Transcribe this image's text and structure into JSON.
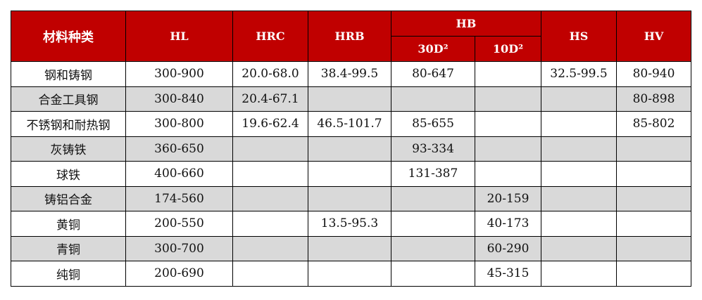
{
  "header": {
    "material": "材料种类",
    "hl": "HL",
    "hrc": "HRC",
    "hrb": "HRB",
    "hb": "HB",
    "hb_30": "30D²",
    "hb_10": "10D²",
    "hs": "HS",
    "hv": "HV"
  },
  "colors": {
    "header_bg": "#c00000",
    "stripe_bg": "#d9d9d9"
  },
  "rows": [
    [
      "钢和铸钢",
      "300-900",
      "20.0-68.0",
      "38.4-99.5",
      "80-647",
      "",
      "32.5-99.5",
      "80-940"
    ],
    [
      "合金工具钢",
      "300-840",
      "20.4-67.1",
      "",
      "",
      "",
      "",
      "80-898"
    ],
    [
      "不锈钢和耐热钢",
      "300-800",
      "19.6-62.4",
      "46.5-101.7",
      "85-655",
      "",
      "",
      "85-802"
    ],
    [
      "灰铸铁",
      "360-650",
      "",
      "",
      "93-334",
      "",
      "",
      ""
    ],
    [
      "球铁",
      "400-660",
      "",
      "",
      "131-387",
      "",
      "",
      ""
    ],
    [
      "铸铝合金",
      "174-560",
      "",
      "",
      "",
      "20-159",
      "",
      ""
    ],
    [
      "黄铜",
      "200-550",
      "",
      "13.5-95.3",
      "",
      "40-173",
      "",
      ""
    ],
    [
      "青铜",
      "300-700",
      "",
      "",
      "",
      "60-290",
      "",
      ""
    ],
    [
      "纯铜",
      "200-690",
      "",
      "",
      "",
      "45-315",
      "",
      ""
    ]
  ]
}
